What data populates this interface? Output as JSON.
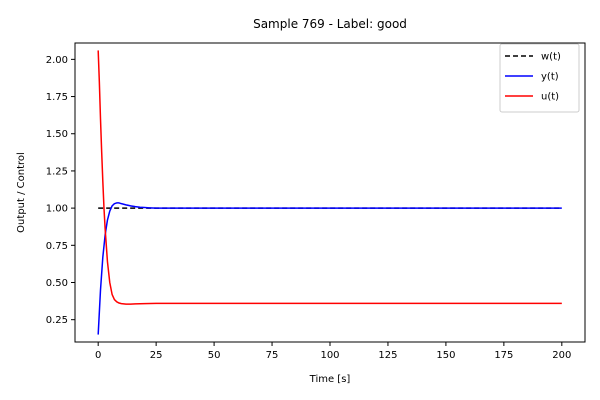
{
  "chart_data": {
    "type": "line",
    "title": "Sample 769 - Label: good",
    "xlabel": "Time [s]",
    "ylabel": "Output / Control",
    "xlim": [
      -10,
      210
    ],
    "ylim": [
      0.1,
      2.11
    ],
    "xticks": [
      0,
      25,
      50,
      75,
      100,
      125,
      150,
      175,
      200
    ],
    "xtick_labels": [
      "0",
      "25",
      "50",
      "75",
      "100",
      "125",
      "150",
      "175",
      "200"
    ],
    "yticks": [
      0.25,
      0.5,
      0.75,
      1.0,
      1.25,
      1.5,
      1.75,
      2.0
    ],
    "ytick_labels": [
      "0.25",
      "0.50",
      "0.75",
      "1.00",
      "1.25",
      "1.50",
      "1.75",
      "2.00"
    ],
    "grid": false,
    "legend_position": "top-right",
    "series": [
      {
        "name": "w(t)",
        "color": "#000000",
        "style": "dashed",
        "x": [
          0,
          200
        ],
        "y": [
          1.0,
          1.0
        ]
      },
      {
        "name": "y(t)",
        "color": "#0000ff",
        "style": "solid",
        "x": [
          0,
          1,
          2,
          3,
          4,
          5,
          6,
          7,
          8,
          9,
          10,
          12,
          14,
          16,
          18,
          20,
          22,
          25,
          30,
          40,
          60,
          100,
          150,
          200
        ],
        "y": [
          0.15,
          0.45,
          0.67,
          0.82,
          0.92,
          0.98,
          1.015,
          1.03,
          1.035,
          1.035,
          1.03,
          1.022,
          1.015,
          1.01,
          1.006,
          1.004,
          1.002,
          1.0,
          1.0,
          1.0,
          1.0,
          1.0,
          1.0,
          1.0
        ]
      },
      {
        "name": "u(t)",
        "color": "#ff0000",
        "style": "solid",
        "x": [
          0,
          0.5,
          1,
          1.5,
          2,
          2.5,
          3,
          4,
          5,
          6,
          7,
          8,
          9,
          10,
          12,
          14,
          16,
          18,
          20,
          25,
          30,
          40,
          60,
          100,
          150,
          200
        ],
        "y": [
          2.06,
          1.85,
          1.6,
          1.38,
          1.18,
          1.0,
          0.86,
          0.64,
          0.5,
          0.42,
          0.385,
          0.37,
          0.362,
          0.358,
          0.355,
          0.355,
          0.356,
          0.357,
          0.358,
          0.36,
          0.36,
          0.36,
          0.36,
          0.36,
          0.36,
          0.36
        ]
      }
    ]
  }
}
